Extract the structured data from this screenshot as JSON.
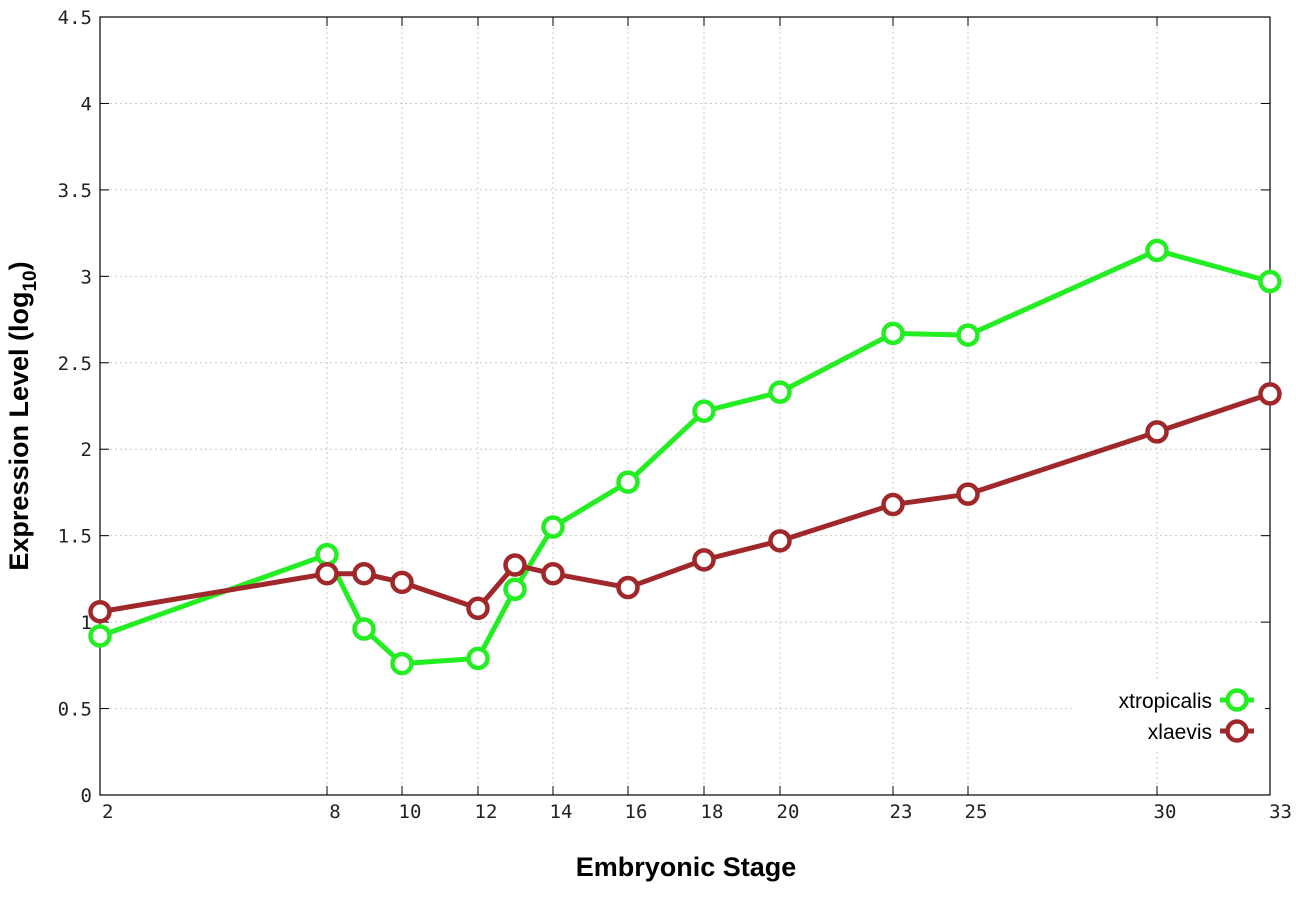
{
  "chart_data": {
    "type": "line",
    "title": "",
    "xlabel": "Embryonic Stage",
    "ylabel_main": "Expression Level (log",
    "ylabel_sub": "10",
    "ylabel_close": ")",
    "xlim": [
      2,
      33
    ],
    "ylim": [
      0,
      4.5
    ],
    "x_scale": "custom stage positions (uneven spacing)",
    "x_ticks": [
      2,
      8,
      10,
      12,
      14,
      16,
      18,
      20,
      23,
      25,
      30,
      33
    ],
    "y_ticks": [
      0,
      0.5,
      1,
      1.5,
      2,
      2.5,
      3,
      3.5,
      4,
      4.5
    ],
    "y_tick_labels": [
      "0",
      "0.5",
      "1",
      "1.5",
      "2",
      "2.5",
      "3",
      "3.5",
      "4",
      "4.5"
    ],
    "grid": true,
    "legend_position": "bottom-right",
    "series": [
      {
        "name": "xtropicalis",
        "color": "#22ee22",
        "x": [
          2,
          8,
          9,
          10,
          12,
          13,
          14,
          16,
          18,
          20,
          23,
          25,
          30,
          33
        ],
        "y": [
          0.92,
          1.39,
          0.96,
          0.76,
          0.79,
          1.19,
          1.55,
          1.81,
          2.22,
          2.33,
          2.67,
          2.66,
          3.15,
          2.97
        ]
      },
      {
        "name": "xlaevis",
        "color": "#a0282a",
        "x": [
          2,
          8,
          9,
          10,
          12,
          13,
          14,
          16,
          18,
          20,
          23,
          25,
          30,
          33
        ],
        "y": [
          1.06,
          1.28,
          1.28,
          1.23,
          1.08,
          1.33,
          1.28,
          1.2,
          1.36,
          1.47,
          1.68,
          1.74,
          2.1,
          2.32
        ]
      }
    ]
  }
}
